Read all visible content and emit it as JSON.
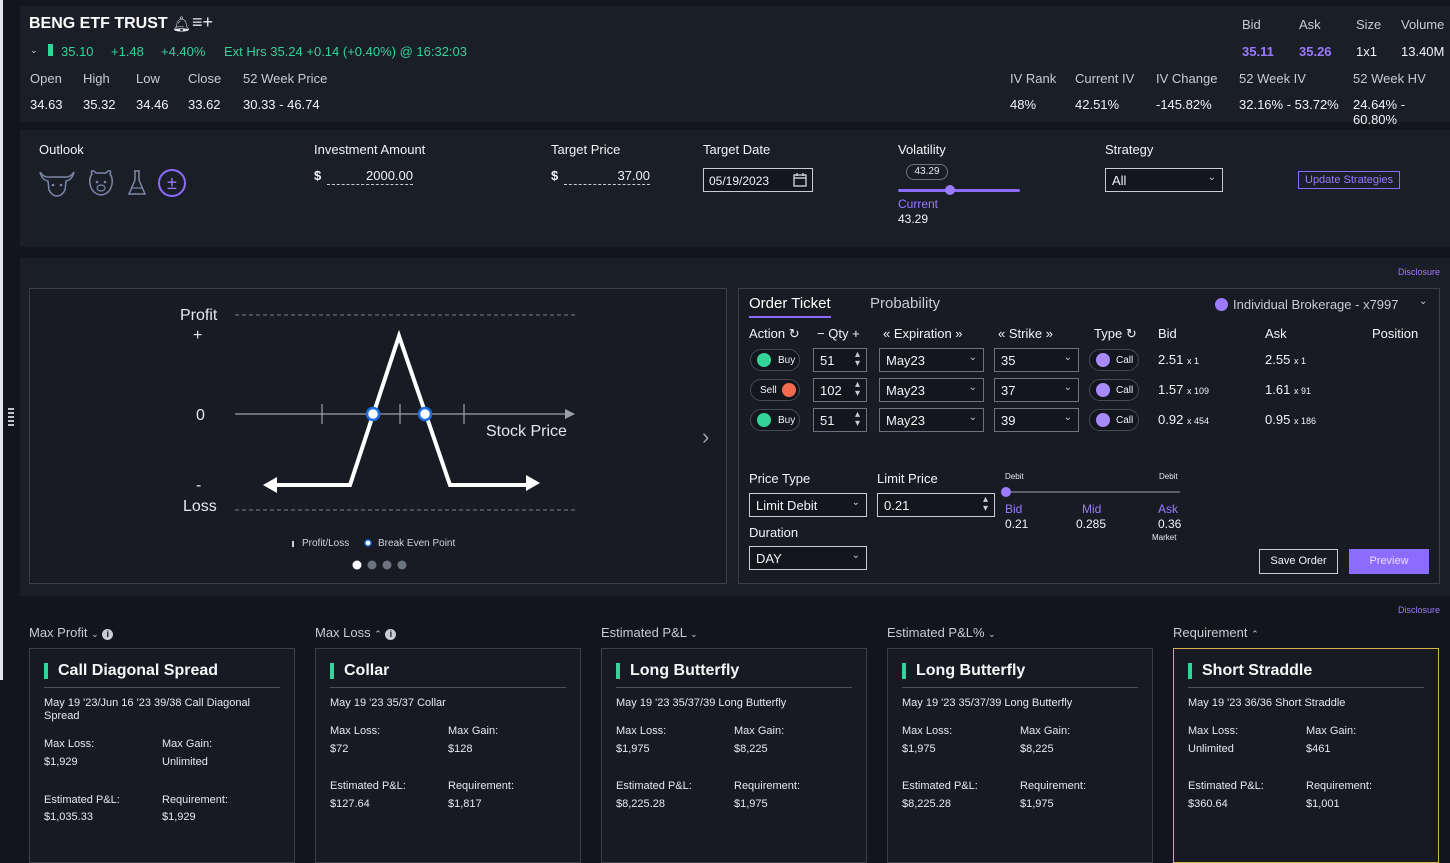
{
  "header": {
    "symbol": "BENG ETF TRUST",
    "last": "35.10",
    "change": "+1.48",
    "change_pct": "+4.40%",
    "ext_hours": "Ext Hrs 35.24 +0.14 (+0.40%) @ 16:32:03",
    "open_label": "Open",
    "open": "34.63",
    "high_label": "High",
    "high": "35.32",
    "low_label": "Low",
    "low": "34.46",
    "close_label": "Close",
    "close": "33.62",
    "wk52_label": "52 Week Price",
    "wk52": "30.33 - 46.74",
    "bid_label": "Bid",
    "bid": "35.11",
    "ask_label": "Ask",
    "ask": "35.26",
    "size_label": "Size",
    "size": "1x1",
    "volume_label": "Volume",
    "volume": "13.40M",
    "ivrank_label": "IV Rank",
    "ivrank": "48%",
    "curiv_label": "Current IV",
    "curiv": "42.51%",
    "ivchg_label": "IV Change",
    "ivchg": "-145.82%",
    "wkiv_label": "52 Week IV",
    "wkiv": "32.16% - 53.72%",
    "wkhv_label": "52 Week HV",
    "wkhv": "24.64% - 60.80%"
  },
  "inputs": {
    "outlook_label": "Outlook",
    "investment_label": "Investment Amount",
    "investment_currency": "$",
    "investment_value": "2000.00",
    "target_price_label": "Target Price",
    "target_price_currency": "$",
    "target_price_value": "37.00",
    "target_date_label": "Target Date",
    "target_date_value": "05/19/2023",
    "volatility_label": "Volatility",
    "volatility_bubble": "43.29",
    "volatility_current_label": "Current",
    "volatility_current_value": "43.29",
    "volatility_level": 0.26,
    "strategy_label": "Strategy",
    "strategy_value": "All",
    "update_button": "Update Strategies",
    "outlook_neutral_symbol": "±"
  },
  "disclosure": "Disclosure",
  "chart": {
    "profit_label": "Profit",
    "plus": "+",
    "zero": "0",
    "minus": "-",
    "loss_label": "Loss",
    "stock_price_label": "Stock Price",
    "legend_pl": "Profit/Loss",
    "legend_be": "Break Even Point"
  },
  "ticket": {
    "tab_order": "Order Ticket",
    "tab_probability": "Probability",
    "account": "Individual Brokerage - x7997",
    "col_action": "Action",
    "col_qty": "Qty",
    "col_expiration": "Expiration",
    "col_strike": "Strike",
    "col_type": "Type",
    "col_bid": "Bid",
    "col_ask": "Ask",
    "col_position": "Position",
    "legs": [
      {
        "action": "Buy",
        "qty": "51",
        "exp": "May23",
        "strike": "35",
        "type": "Call",
        "bid": "2.51",
        "bid_size": "x 1",
        "ask": "2.55",
        "ask_size": "x 1"
      },
      {
        "action": "Sell",
        "qty": "102",
        "exp": "May23",
        "strike": "37",
        "type": "Call",
        "bid": "1.57",
        "bid_size": "x 109",
        "ask": "1.61",
        "ask_size": "x 91"
      },
      {
        "action": "Buy",
        "qty": "51",
        "exp": "May23",
        "strike": "39",
        "type": "Call",
        "bid": "0.92",
        "bid_size": "x 454",
        "ask": "0.95",
        "ask_size": "x 186"
      }
    ],
    "price_type_label": "Price Type",
    "price_type_value": "Limit Debit",
    "limit_price_label": "Limit Price",
    "limit_price_value": "0.21",
    "debit_left": "Debit",
    "debit_right": "Debit",
    "bid_label": "Bid",
    "bid_value": "0.21",
    "mid_label": "Mid",
    "mid_value": "0.285",
    "ask_label": "Ask",
    "ask_value": "0.36",
    "market_label": "Market",
    "duration_label": "Duration",
    "duration_value": "DAY",
    "save_button": "Save Order",
    "preview_button": "Preview"
  },
  "sorts": {
    "max_profit": "Max Profit",
    "max_loss": "Max Loss",
    "est_pl": "Estimated P&L",
    "est_pl_pct": "Estimated P&L%",
    "requirement": "Requirement"
  },
  "cards": [
    {
      "title": "Call Diagonal Spread",
      "desc": "May 19 '23/Jun 16 '23 39/38 Call Diagonal Spread",
      "max_loss_label": "Max Loss:",
      "max_loss": "$1,929",
      "max_gain_label": "Max Gain:",
      "max_gain": "Unlimited",
      "epl_label": "Estimated P&L:",
      "epl": "$1,035.33",
      "req_label": "Requirement:",
      "req": "$1,929"
    },
    {
      "title": "Collar",
      "desc": "May 19 '23 35/37 Collar",
      "max_loss_label": "Max Loss:",
      "max_loss": "$72",
      "max_gain_label": "Max Gain:",
      "max_gain": "$128",
      "epl_label": "Estimated P&L:",
      "epl": "$127.64",
      "req_label": "Requirement:",
      "req": "$1,817"
    },
    {
      "title": "Long Butterfly",
      "desc": "May 19 '23 35/37/39 Long Butterfly",
      "max_loss_label": "Max Loss:",
      "max_loss": "$1,975",
      "max_gain_label": "Max Gain:",
      "max_gain": "$8,225",
      "epl_label": "Estimated P&L:",
      "epl": "$8,225.28",
      "req_label": "Requirement:",
      "req": "$1,975"
    },
    {
      "title": "Long Butterfly",
      "desc": "May 19 '23 35/37/39 Long Butterfly",
      "max_loss_label": "Max Loss:",
      "max_loss": "$1,975",
      "max_gain_label": "Max Gain:",
      "max_gain": "$8,225",
      "epl_label": "Estimated P&L:",
      "epl": "$8,225.28",
      "req_label": "Requirement:",
      "req": "$1,975"
    },
    {
      "title": "Short Straddle",
      "desc": "May 19 '23 36/36 Short Straddle",
      "max_loss_label": "Max Loss:",
      "max_loss": "Unlimited",
      "max_gain_label": "Max Gain:",
      "max_gain": "$461",
      "epl_label": "Estimated P&L:",
      "epl": "$360.64",
      "req_label": "Requirement:",
      "req": "$1,001"
    }
  ],
  "colors": {
    "accent": "#9b7bff",
    "up": "#34d399",
    "sell": "#f26b4f",
    "selected_card": "#d6b24a"
  }
}
